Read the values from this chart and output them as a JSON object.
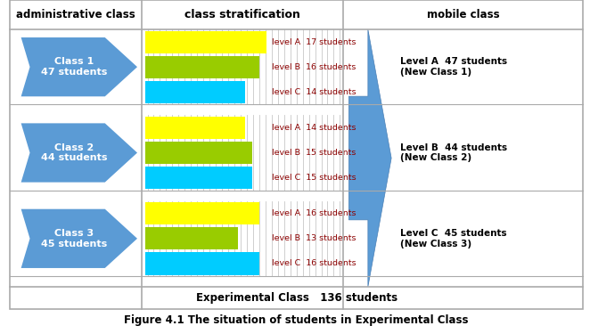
{
  "title": "Figure 4.1 The situation of students in Experimental Class",
  "header_admin": "administrative class",
  "header_strat": "class stratification",
  "header_mobile": "mobile class",
  "footer": "Experimental Class   136 students",
  "classes": [
    {
      "name": "Class 1\n47 students",
      "levels": [
        17,
        16,
        14
      ]
    },
    {
      "name": "Class 2\n44 students",
      "levels": [
        14,
        15,
        15
      ]
    },
    {
      "name": "Class 3\n45 students",
      "levels": [
        16,
        13,
        16
      ]
    }
  ],
  "level_labels": [
    "level A",
    "level B",
    "level C"
  ],
  "level_counts": [
    [
      "17 students",
      "16 students",
      "14 students"
    ],
    [
      "14 students",
      "15 students",
      "15 students"
    ],
    [
      "16 students",
      "13 students",
      "16 students"
    ]
  ],
  "mobile_labels": [
    "Level A  47 students\n(New Class 1)",
    "Level B  44 students\n(New Class 2)",
    "Level C  45 students\n(New Class 3)"
  ],
  "color_yellow": "#FFFF00",
  "color_green": "#99CC00",
  "color_cyan": "#00CCFF",
  "color_blue_arrow": "#5B9BD5",
  "color_pentagon": "#5B9BD5",
  "color_border": "#AAAAAA",
  "color_background": "#FFFFFF",
  "color_text_dark": "#8B0000",
  "color_text_white": "#FFFFFF",
  "color_text_black": "#000000"
}
